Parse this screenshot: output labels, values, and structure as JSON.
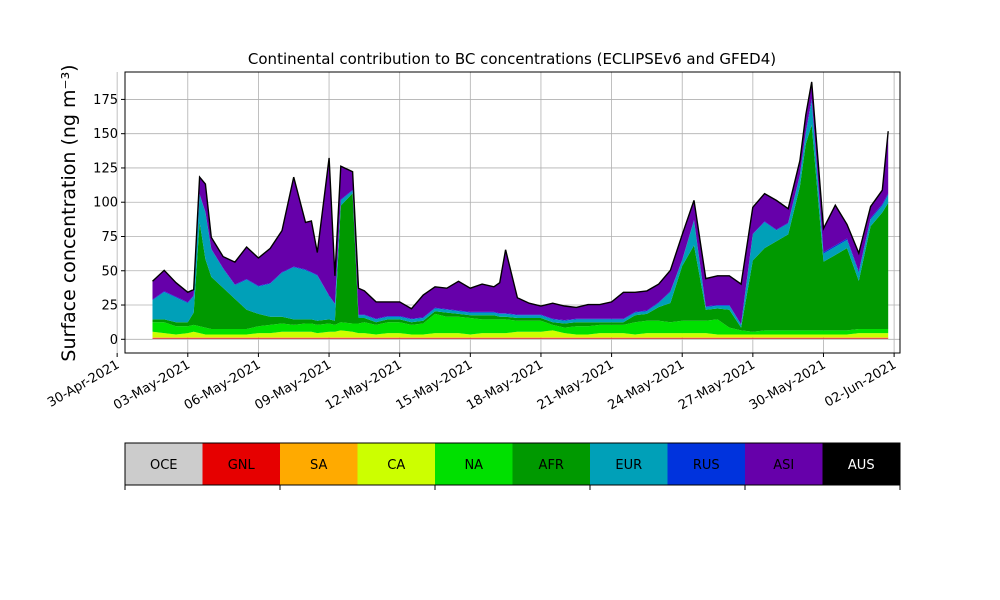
{
  "chart_data": {
    "type": "area",
    "title": "Continental contribution to BC concentrations (ECLIPSEv6 and GFED4)",
    "ylabel": "Surface concentration (ng m⁻³)",
    "xlabel": "",
    "ylim": [
      -10,
      195
    ],
    "xlim": [
      "2021-04-30T08:00",
      "2021-06-02T06:00"
    ],
    "grid": true,
    "yticks": [
      0,
      25,
      50,
      75,
      100,
      125,
      150,
      175
    ],
    "xticks": [
      "2021-04-30",
      "2021-05-03",
      "2021-05-06",
      "2021-05-09",
      "2021-05-12",
      "2021-05-15",
      "2021-05-18",
      "2021-05-21",
      "2021-05-24",
      "2021-05-27",
      "2021-05-30",
      "2021-06-02"
    ],
    "xtick_labels": [
      "30-Apr-2021",
      "03-May-2021",
      "06-May-2021",
      "09-May-2021",
      "12-May-2021",
      "15-May-2021",
      "18-May-2021",
      "21-May-2021",
      "24-May-2021",
      "27-May-2021",
      "30-May-2021",
      "02-Jun-2021"
    ],
    "legend_placement": "bottom colorbar",
    "x": [
      "2021-05-01T12:00",
      "2021-05-02T00:00",
      "2021-05-02T12:00",
      "2021-05-03T00:00",
      "2021-05-03T06:00",
      "2021-05-03T12:00",
      "2021-05-03T18:00",
      "2021-05-04T00:00",
      "2021-05-04T12:00",
      "2021-05-05T00:00",
      "2021-05-05T12:00",
      "2021-05-06T00:00",
      "2021-05-06T12:00",
      "2021-05-07T00:00",
      "2021-05-07T12:00",
      "2021-05-08T00:00",
      "2021-05-08T06:00",
      "2021-05-08T12:00",
      "2021-05-09T00:00",
      "2021-05-09T06:00",
      "2021-05-09T12:00",
      "2021-05-10T00:00",
      "2021-05-10T06:00",
      "2021-05-10T12:00",
      "2021-05-11T00:00",
      "2021-05-11T12:00",
      "2021-05-12T00:00",
      "2021-05-12T12:00",
      "2021-05-13T00:00",
      "2021-05-13T12:00",
      "2021-05-14T00:00",
      "2021-05-14T12:00",
      "2021-05-15T00:00",
      "2021-05-15T12:00",
      "2021-05-16T00:00",
      "2021-05-16T06:00",
      "2021-05-16T12:00",
      "2021-05-17T00:00",
      "2021-05-17T12:00",
      "2021-05-18T00:00",
      "2021-05-18T12:00",
      "2021-05-19T00:00",
      "2021-05-19T12:00",
      "2021-05-20T00:00",
      "2021-05-20T12:00",
      "2021-05-21T00:00",
      "2021-05-21T12:00",
      "2021-05-22T00:00",
      "2021-05-22T12:00",
      "2021-05-23T00:00",
      "2021-05-23T12:00",
      "2021-05-24T00:00",
      "2021-05-24T12:00",
      "2021-05-25T00:00",
      "2021-05-25T12:00",
      "2021-05-26T00:00",
      "2021-05-26T12:00",
      "2021-05-27T00:00",
      "2021-05-27T12:00",
      "2021-05-28T00:00",
      "2021-05-28T12:00",
      "2021-05-29T00:00",
      "2021-05-29T06:00",
      "2021-05-29T12:00",
      "2021-05-30T00:00",
      "2021-05-30T12:00",
      "2021-05-31T00:00",
      "2021-05-31T12:00",
      "2021-06-01T00:00",
      "2021-06-01T12:00",
      "2021-06-01T18:00"
    ],
    "series": [
      {
        "name": "OCE",
        "color": "#cccccc",
        "values": [
          0.5,
          0.5,
          0.5,
          0.5,
          0.5,
          0.5,
          0.5,
          0.5,
          0.5,
          0.5,
          0.5,
          0.5,
          0.5,
          0.5,
          0.5,
          0.5,
          0.5,
          0.5,
          0.5,
          0.5,
          0.5,
          0.5,
          0.5,
          0.5,
          0.5,
          0.5,
          0.5,
          0.5,
          0.5,
          0.5,
          0.5,
          0.5,
          0.5,
          0.5,
          0.5,
          0.5,
          0.5,
          0.5,
          0.5,
          0.5,
          0.5,
          0.5,
          0.5,
          0.5,
          0.5,
          0.5,
          0.5,
          0.5,
          0.5,
          0.5,
          0.5,
          0.5,
          0.5,
          0.5,
          0.5,
          0.5,
          0.5,
          0.5,
          0.5,
          0.5,
          0.5,
          0.5,
          0.5,
          0.5,
          0.5,
          0.5,
          0.5,
          0.5,
          0.5,
          0.5,
          0.5
        ]
      },
      {
        "name": "GNL",
        "color": "#e60000",
        "values": [
          0.5,
          0.5,
          0.5,
          0.5,
          0.5,
          0.5,
          0.5,
          0.5,
          0.5,
          0.5,
          0.5,
          0.5,
          0.5,
          0.5,
          0.5,
          0.5,
          0.5,
          0.5,
          0.5,
          0.5,
          0.5,
          0.5,
          0.5,
          0.5,
          0.5,
          0.5,
          0.5,
          0.5,
          0.5,
          0.5,
          0.5,
          0.5,
          0.5,
          0.5,
          0.5,
          0.5,
          0.5,
          0.5,
          0.5,
          0.5,
          0.5,
          0.5,
          0.5,
          0.5,
          0.5,
          0.5,
          0.5,
          0.5,
          0.5,
          0.5,
          0.5,
          0.5,
          0.5,
          0.5,
          0.5,
          0.5,
          0.5,
          0.5,
          0.5,
          0.5,
          0.5,
          0.5,
          0.5,
          0.5,
          0.5,
          0.5,
          0.5,
          0.5,
          0.5,
          0.5,
          0.5
        ]
      },
      {
        "name": "SA",
        "color": "#ffaa00",
        "values": [
          0.5,
          0.5,
          0.5,
          0.5,
          0.5,
          0.5,
          0.5,
          0.5,
          0.5,
          0.5,
          0.5,
          0.5,
          0.5,
          0.5,
          0.5,
          0.5,
          0.5,
          0.5,
          0.5,
          0.5,
          0.5,
          0.5,
          0.5,
          0.5,
          0.5,
          0.5,
          0.5,
          0.5,
          0.5,
          0.5,
          0.5,
          0.5,
          0.5,
          0.5,
          0.5,
          0.5,
          0.5,
          0.5,
          0.5,
          0.5,
          0.5,
          0.5,
          0.5,
          0.5,
          0.5,
          0.5,
          0.5,
          0.5,
          0.5,
          0.5,
          0.5,
          0.5,
          0.5,
          0.5,
          0.5,
          0.5,
          0.5,
          0.5,
          0.5,
          0.5,
          0.5,
          0.5,
          0.5,
          0.5,
          0.5,
          0.5,
          0.5,
          0.5,
          0.5,
          0.5,
          0.5
        ]
      },
      {
        "name": "CA",
        "color": "#ccff00",
        "values": [
          4,
          3,
          2,
          3,
          4,
          3,
          2,
          2,
          2,
          2,
          2,
          3,
          3,
          4,
          4,
          4,
          4,
          3,
          4,
          4,
          5,
          4,
          3,
          3,
          2,
          3,
          3,
          2,
          2,
          3,
          3,
          3,
          2,
          3,
          3,
          3,
          3,
          4,
          4,
          4,
          5,
          3,
          2,
          2,
          3,
          3,
          3,
          2,
          3,
          3,
          3,
          3,
          3,
          3,
          2,
          2,
          2,
          2,
          2,
          2,
          2,
          2,
          2,
          2,
          2,
          2,
          2,
          3,
          3,
          3,
          3
        ]
      },
      {
        "name": "NA",
        "color": "#00e000",
        "values": [
          7,
          8,
          6,
          5,
          5,
          5,
          5,
          4,
          4,
          4,
          4,
          5,
          6,
          6,
          5,
          6,
          6,
          6,
          6,
          5,
          6,
          6,
          7,
          8,
          7,
          8,
          8,
          7,
          8,
          14,
          12,
          12,
          12,
          10,
          10,
          10,
          10,
          8,
          8,
          8,
          4,
          4,
          6,
          6,
          6,
          6,
          6,
          9,
          9,
          9,
          8,
          9,
          9,
          9,
          11,
          5,
          3,
          2,
          3,
          3,
          3,
          3,
          3,
          3,
          3,
          3,
          3,
          3,
          3,
          3,
          3
        ]
      },
      {
        "name": "AFR",
        "color": "#009900",
        "values": [
          2,
          2,
          3,
          3,
          9,
          76,
          50,
          38,
          30,
          22,
          14,
          9,
          6,
          5,
          4,
          3,
          3,
          3,
          3,
          3,
          85,
          95,
          4,
          3,
          2,
          2,
          2,
          2,
          2,
          2,
          3,
          2,
          2,
          3,
          3,
          2,
          2,
          2,
          2,
          2,
          2,
          3,
          3,
          3,
          2,
          2,
          2,
          5,
          5,
          10,
          14,
          40,
          55,
          8,
          8,
          13,
          2,
          52,
          60,
          65,
          70,
          105,
          136,
          150,
          50,
          55,
          60,
          35,
          75,
          85,
          92
        ]
      },
      {
        "name": "EUR",
        "color": "#00a0b8",
        "values": [
          14,
          20,
          18,
          14,
          12,
          20,
          34,
          20,
          14,
          10,
          22,
          20,
          24,
          32,
          38,
          36,
          34,
          33,
          17,
          12,
          4,
          2,
          2,
          2,
          2,
          2,
          2,
          2,
          2,
          2,
          2,
          2,
          2,
          2,
          2,
          2,
          2,
          2,
          2,
          2,
          2,
          2,
          2,
          2,
          2,
          2,
          2,
          2,
          2,
          3,
          8,
          4,
          18,
          2,
          2,
          3,
          2,
          19,
          19,
          8,
          8,
          8,
          8,
          17,
          6,
          6,
          6,
          6,
          5,
          5,
          6
        ]
      },
      {
        "name": "RUS",
        "color": "#0033dd",
        "values": [
          0.5,
          0.5,
          0.5,
          0.5,
          0.5,
          0.5,
          0.5,
          0.5,
          0.5,
          0.5,
          0.5,
          0.5,
          0.5,
          0.5,
          0.5,
          0.5,
          0.5,
          0.5,
          0.5,
          0.5,
          0.5,
          0.5,
          0.5,
          0.5,
          0.5,
          0.5,
          0.5,
          0.5,
          0.5,
          0.5,
          0.5,
          0.5,
          0.5,
          0.5,
          0.5,
          0.5,
          0.5,
          0.5,
          0.5,
          0.5,
          0.5,
          0.5,
          0.5,
          0.5,
          0.5,
          0.5,
          0.5,
          0.5,
          0.5,
          0.5,
          0.5,
          0.5,
          0.5,
          0.5,
          0.5,
          0.5,
          0.5,
          0.5,
          0.5,
          0.5,
          0.5,
          0.5,
          1,
          2,
          1,
          1,
          1,
          1,
          1,
          1,
          1
        ]
      },
      {
        "name": "ASI",
        "color": "#6600aa",
        "values": [
          13,
          15,
          10,
          7,
          4,
          12,
          20,
          8,
          8,
          16,
          23,
          20,
          25,
          30,
          65,
          34,
          37,
          16,
          100,
          20,
          24,
          13,
          19,
          17,
          12,
          10,
          10,
          7,
          16,
          15,
          15,
          21,
          17,
          20,
          18,
          22,
          46,
          12,
          8,
          6,
          11,
          10,
          8,
          10,
          10,
          12,
          19,
          14,
          14,
          13,
          15,
          18,
          14,
          20,
          21,
          21,
          29,
          19,
          20,
          21,
          10,
          10,
          12,
          12,
          17,
          29,
          10,
          13,
          8,
          10,
          45
        ]
      },
      {
        "name": "AUS",
        "color": "#000000",
        "values": [
          0.3,
          0.3,
          0.3,
          0.3,
          0.3,
          0.3,
          0.3,
          0.3,
          0.3,
          0.3,
          0.3,
          0.3,
          0.3,
          0.3,
          0.3,
          0.3,
          0.3,
          0.3,
          0.3,
          0.3,
          0.3,
          0.3,
          0.3,
          0.3,
          0.3,
          0.3,
          0.3,
          0.3,
          0.3,
          0.3,
          0.3,
          0.3,
          0.3,
          0.3,
          0.3,
          0.3,
          0.3,
          0.3,
          0.3,
          0.3,
          0.3,
          0.3,
          0.3,
          0.3,
          0.3,
          0.3,
          0.3,
          0.3,
          0.3,
          0.3,
          0.3,
          0.3,
          0.3,
          0.3,
          0.3,
          0.3,
          0.3,
          0.3,
          0.3,
          0.3,
          0.3,
          0.3,
          0.3,
          0.3,
          0.3,
          0.3,
          0.3,
          0.3,
          0.3,
          0.3,
          0.3
        ]
      }
    ]
  }
}
